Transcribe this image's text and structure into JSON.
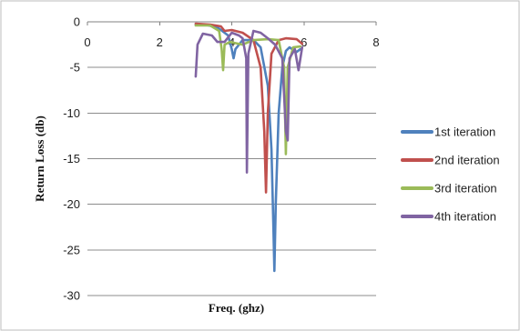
{
  "chart_data": {
    "type": "line",
    "title": "",
    "xlabel": "Freq. (ghz)",
    "ylabel": "Return Loss (db)",
    "xlim": [
      0,
      8
    ],
    "ylim": [
      -30,
      0
    ],
    "x_ticks": [
      "0",
      "2",
      "4",
      "6",
      "8"
    ],
    "y_ticks": [
      "0",
      "-5",
      "-10",
      "-15",
      "-20",
      "-25",
      "-30"
    ],
    "grid": "horizontal",
    "legend_position": "right",
    "series": [
      {
        "name": "1st iteration",
        "color": "#4f81bd",
        "points": [
          [
            3.0,
            -0.3
          ],
          [
            3.3,
            -0.35
          ],
          [
            3.6,
            -0.6
          ],
          [
            3.9,
            -1.5
          ],
          [
            4.0,
            -3.0
          ],
          [
            4.05,
            -4.0
          ],
          [
            4.1,
            -3.0
          ],
          [
            4.3,
            -2.0
          ],
          [
            4.6,
            -2.0
          ],
          [
            4.8,
            -2.8
          ],
          [
            5.0,
            -7.0
          ],
          [
            5.1,
            -14.0
          ],
          [
            5.15,
            -22.0
          ],
          [
            5.18,
            -27.3
          ],
          [
            5.22,
            -20.0
          ],
          [
            5.3,
            -10.0
          ],
          [
            5.4,
            -5.0
          ],
          [
            5.5,
            -3.2
          ],
          [
            5.6,
            -2.8
          ],
          [
            5.8,
            -3.3
          ],
          [
            5.9,
            -3.0
          ]
        ]
      },
      {
        "name": "2nd iteration",
        "color": "#c0504d",
        "points": [
          [
            3.0,
            -0.2
          ],
          [
            3.4,
            -0.3
          ],
          [
            3.7,
            -0.5
          ],
          [
            3.8,
            -1.0
          ],
          [
            4.0,
            -0.9
          ],
          [
            4.3,
            -1.2
          ],
          [
            4.6,
            -2.0
          ],
          [
            4.8,
            -5.0
          ],
          [
            4.9,
            -12.0
          ],
          [
            4.95,
            -18.7
          ],
          [
            5.0,
            -10.0
          ],
          [
            5.1,
            -3.5
          ],
          [
            5.3,
            -2.0
          ],
          [
            5.5,
            -1.8
          ],
          [
            5.8,
            -1.9
          ],
          [
            5.95,
            -2.4
          ]
        ]
      },
      {
        "name": "3rd iteration",
        "color": "#9bbb59",
        "points": [
          [
            3.0,
            -0.4
          ],
          [
            3.4,
            -0.4
          ],
          [
            3.65,
            -1.0
          ],
          [
            3.72,
            -3.0
          ],
          [
            3.76,
            -5.3
          ],
          [
            3.8,
            -2.5
          ],
          [
            3.95,
            -2.2
          ],
          [
            4.3,
            -2.5
          ],
          [
            4.6,
            -2.0
          ],
          [
            5.0,
            -1.9
          ],
          [
            5.3,
            -2.0
          ],
          [
            5.45,
            -5.0
          ],
          [
            5.5,
            -14.5
          ],
          [
            5.55,
            -5.0
          ],
          [
            5.7,
            -2.8
          ],
          [
            5.9,
            -2.7
          ]
        ]
      },
      {
        "name": "4th iteration",
        "color": "#8064a2",
        "points": [
          [
            3.0,
            -6.0
          ],
          [
            3.05,
            -2.5
          ],
          [
            3.2,
            -1.3
          ],
          [
            3.45,
            -1.5
          ],
          [
            3.6,
            -2.2
          ],
          [
            3.8,
            -2.2
          ],
          [
            4.0,
            -1.2
          ],
          [
            4.2,
            -1.5
          ],
          [
            4.3,
            -1.8
          ],
          [
            4.4,
            -4.0
          ],
          [
            4.42,
            -16.5
          ],
          [
            4.46,
            -3.5
          ],
          [
            4.6,
            -1.0
          ],
          [
            4.8,
            -1.2
          ],
          [
            5.0,
            -1.8
          ],
          [
            5.2,
            -2.5
          ],
          [
            5.4,
            -4.0
          ],
          [
            5.5,
            -12.0
          ],
          [
            5.55,
            -13.0
          ],
          [
            5.6,
            -4.0
          ],
          [
            5.75,
            -3.0
          ],
          [
            5.85,
            -5.3
          ],
          [
            5.95,
            -2.8
          ]
        ]
      }
    ]
  }
}
